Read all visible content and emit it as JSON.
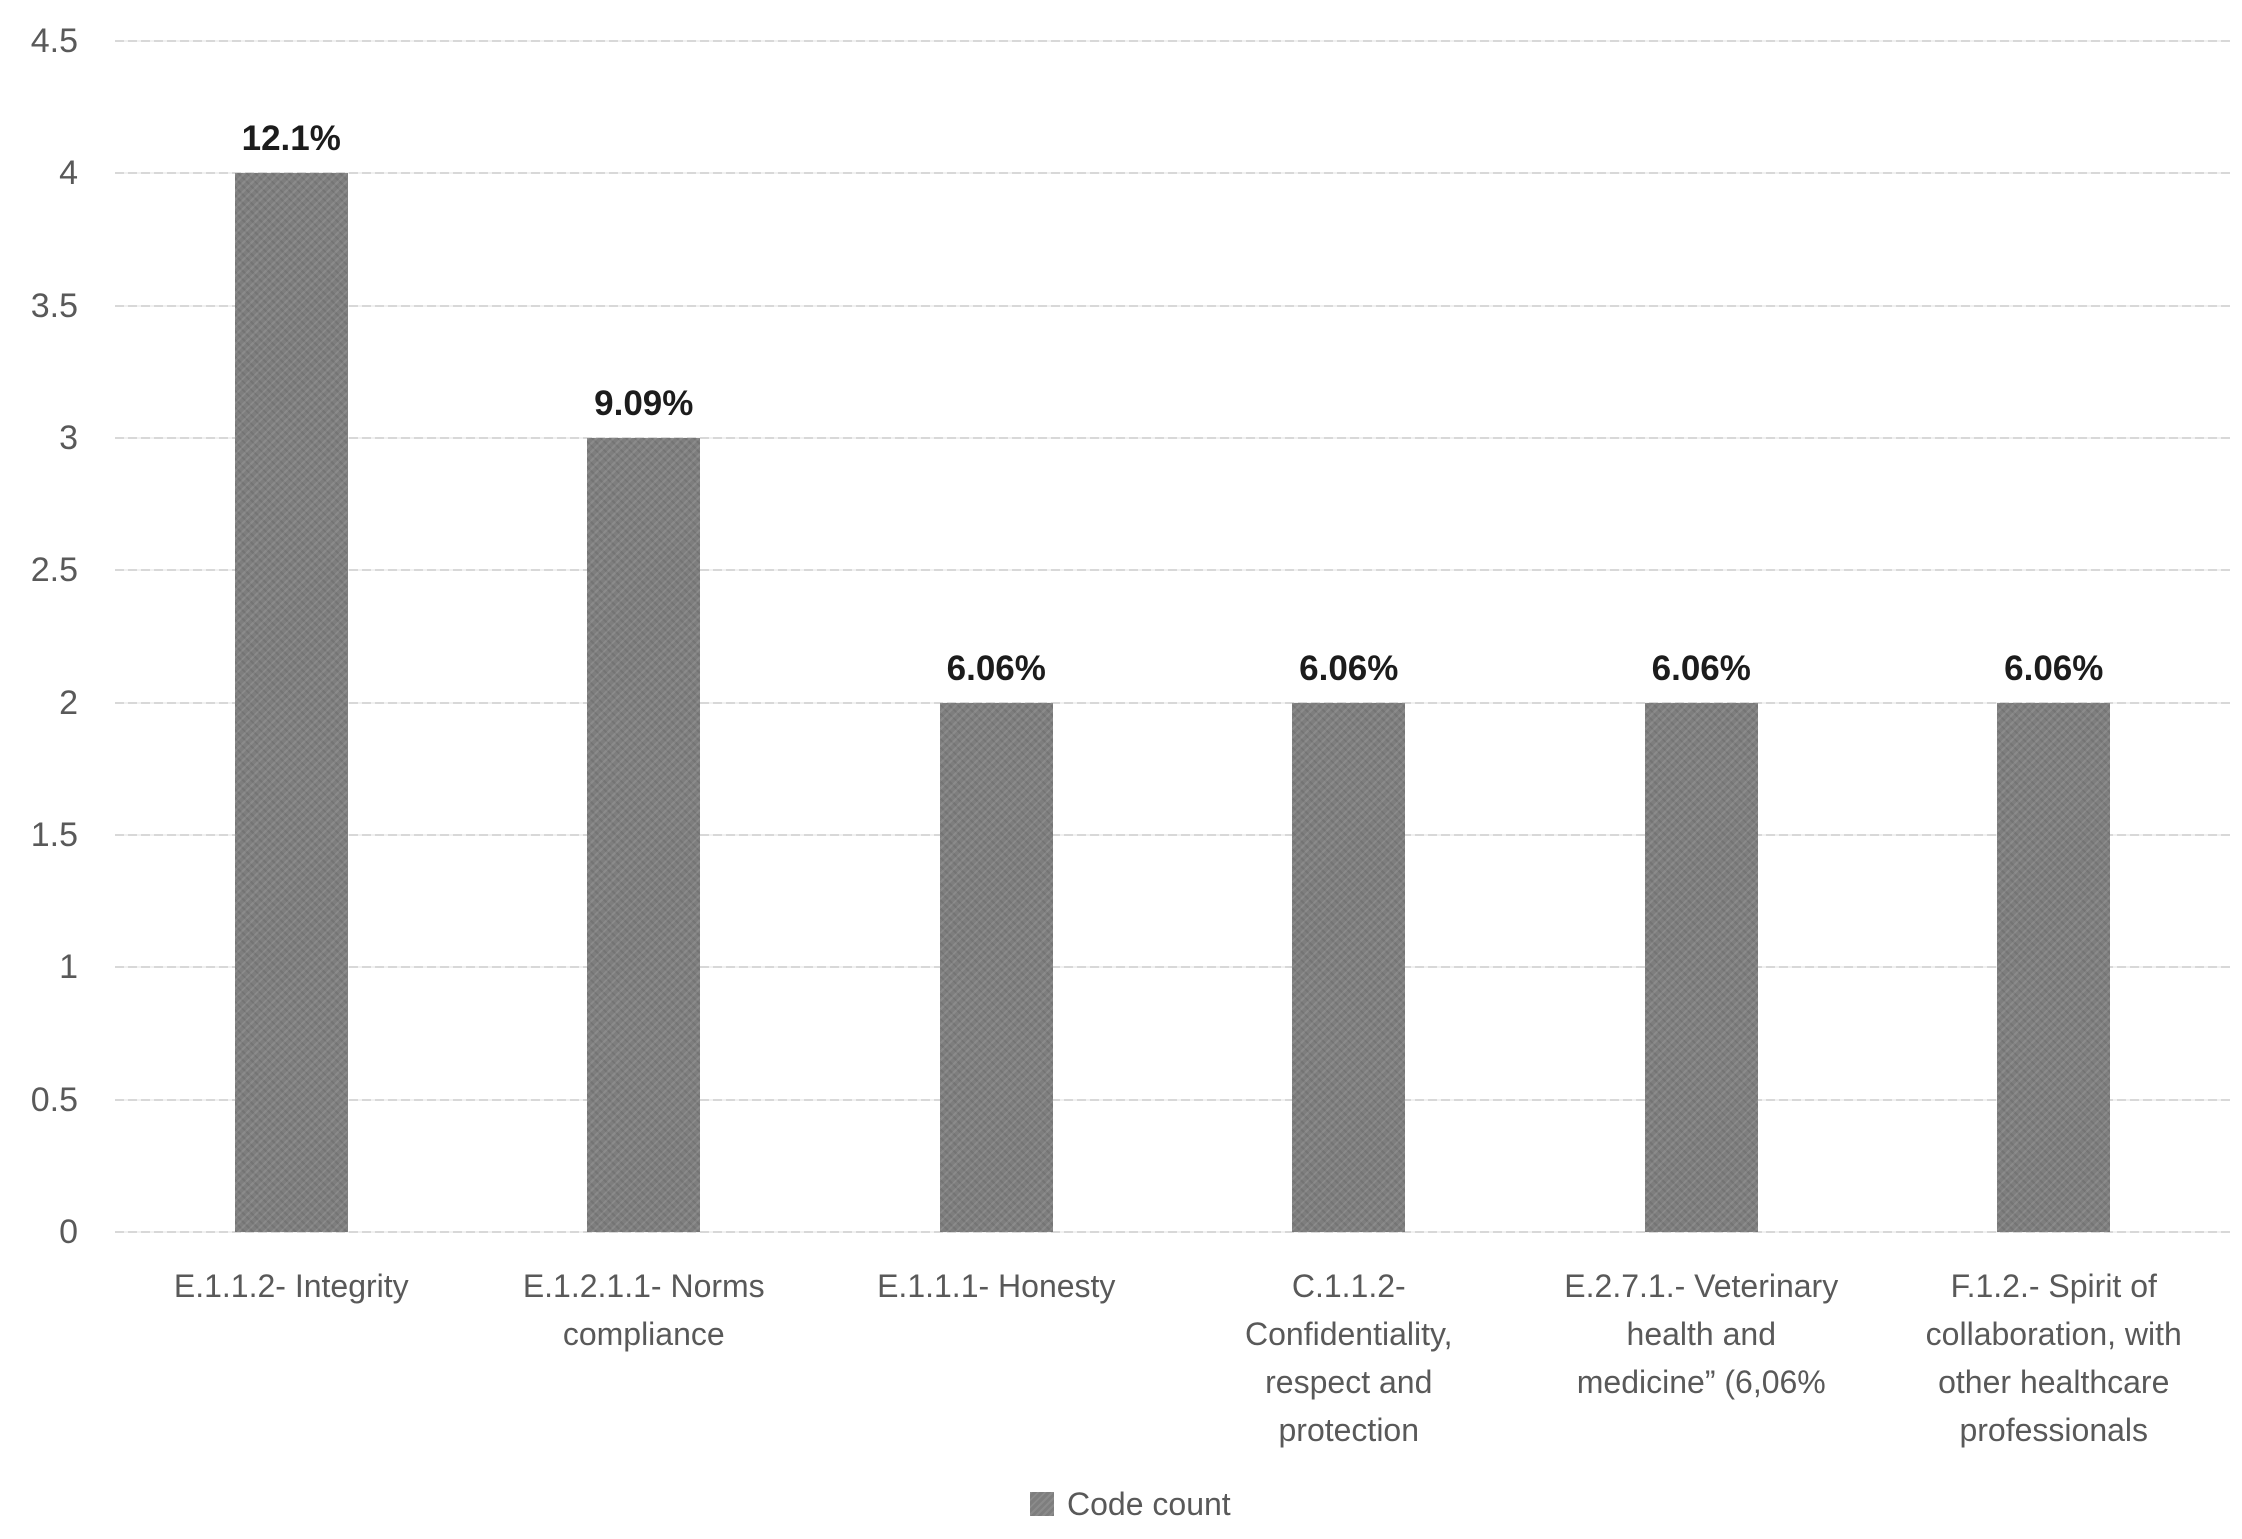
{
  "chart_data": {
    "type": "bar",
    "title": "",
    "xlabel": "",
    "ylabel": "",
    "categories": [
      "E.1.1.2- Integrity",
      "E.1.2.1.1- Norms compliance",
      "E.1.1.1- Honesty",
      "C.1.1.2- Confidentiality, respect and protection",
      "E.2.7.1.- Veterinary health and medicine” (6,06%",
      "F.1.2.- Spirit of collaboration, with other healthcare professionals"
    ],
    "categories_display": [
      "E.1.1.2- Integrity",
      "E.1.2.1.1- Norms\ncompliance",
      "E.1.1.1- Honesty",
      "C.1.1.2-\nConfidentiality,\nrespect and\nprotection",
      "E.2.7.1.- Veterinary\nhealth and\nmedicine” (6,06%",
      "F.1.2.- Spirit of\ncollaboration, with\nother healthcare\nprofessionals"
    ],
    "series": [
      {
        "name": "Code count",
        "values": [
          4,
          3,
          2,
          2,
          2,
          2
        ]
      }
    ],
    "data_labels": [
      "12.1%",
      "9.09%",
      "6.06%",
      "6.06%",
      "6.06%",
      "6.06%"
    ],
    "ylim": [
      0,
      4.5
    ],
    "yticks": [
      0,
      0.5,
      1,
      1.5,
      2,
      2.5,
      3,
      3.5,
      4,
      4.5
    ],
    "ytick_labels": [
      "0",
      "0.5",
      "1",
      "1.5",
      "2",
      "2.5",
      "3",
      "3.5",
      "4",
      "4.5"
    ],
    "grid": true,
    "legend": {
      "label": "Code count",
      "position": "bottom"
    },
    "colors": {
      "bar": "#7e7e7e",
      "gridline": "#d9d9d9",
      "axis_text": "#595959",
      "data_label_text": "#1c1c1c"
    }
  }
}
